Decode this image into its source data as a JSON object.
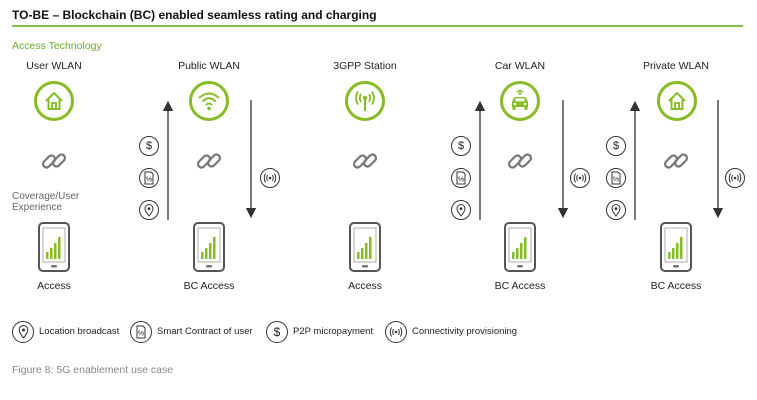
{
  "title": "TO-BE – Blockchain (BC) enabled seamless rating and charging",
  "section_label": "Access Technology",
  "coverage_label_line1": "Coverage/User",
  "coverage_label_line2": "Experience",
  "columns": [
    {
      "top_label": "User WLAN",
      "icon": "house-icon",
      "bottom_label": "Access"
    },
    {
      "top_label": "Public WLAN",
      "icon": "wifi-icon",
      "bottom_label": "BC Access"
    },
    {
      "top_label": "3GPP Station",
      "icon": "antenna-icon",
      "bottom_label": "Access"
    },
    {
      "top_label": "Car WLAN",
      "icon": "car-icon",
      "bottom_label": "BC Access"
    },
    {
      "top_label": "Private WLAN",
      "icon": "house-icon",
      "bottom_label": "BC Access"
    }
  ],
  "glyphs": {
    "dollar": "$",
    "contract": "%",
    "broadcast": "((·))"
  },
  "legend": [
    {
      "icon": "location-icon",
      "label": "Location broadcast"
    },
    {
      "icon": "contract-icon",
      "label": "Smart Contract of user"
    },
    {
      "icon": "dollar-icon",
      "label": "P2P micropayment"
    },
    {
      "icon": "broadcast-icon",
      "label": "Connectivity provisioning"
    }
  ],
  "caption": "Figure 8: 5G enablement use case",
  "colors": {
    "accent": "#86bc25",
    "rule": "#7dc242",
    "section": "#6aaa2c"
  }
}
